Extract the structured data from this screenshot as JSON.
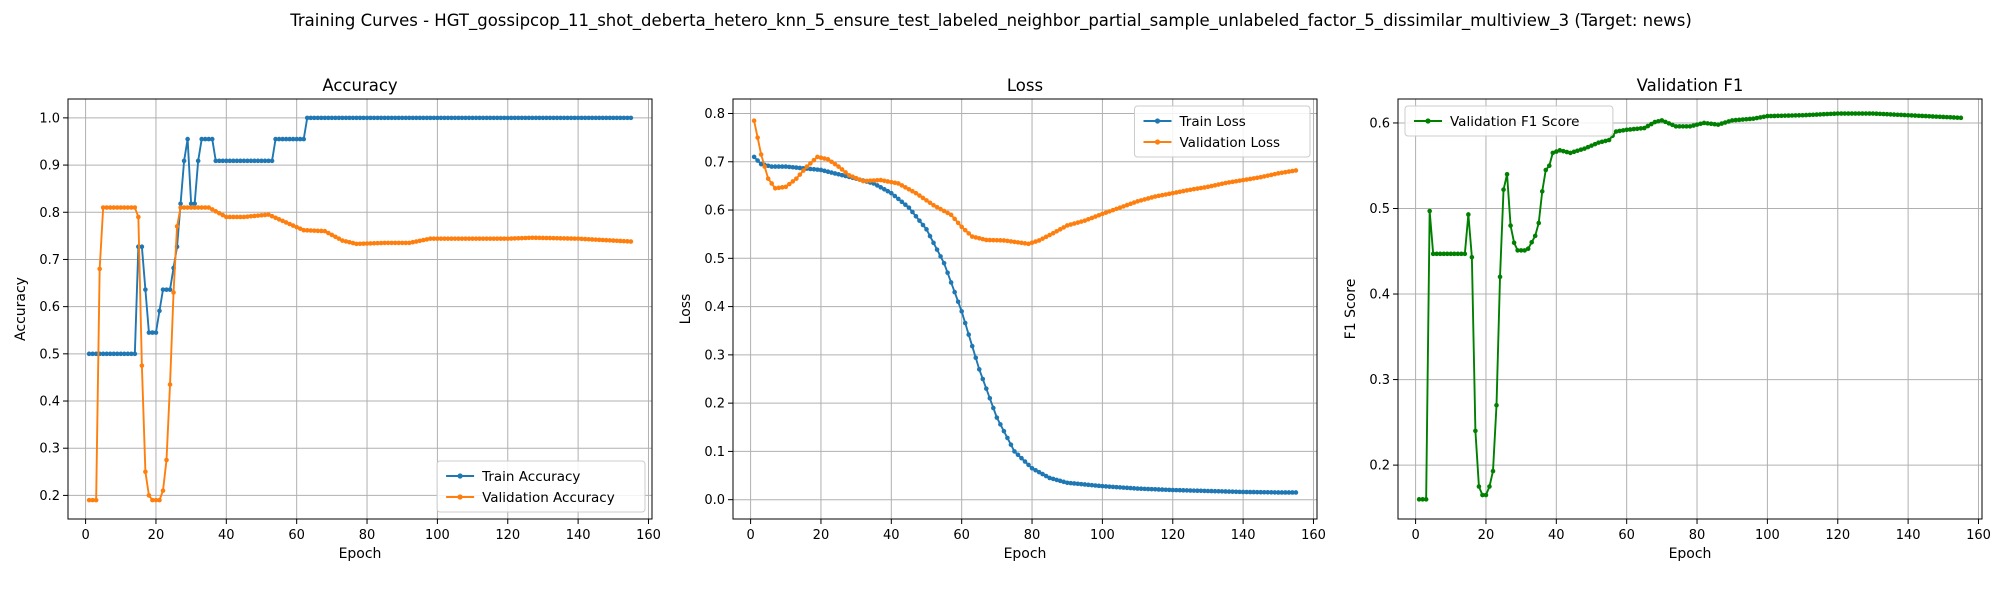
{
  "suptitle": "Training Curves - HGT_gossipcop_11_shot_deberta_hetero_knn_5_ensure_test_labeled_neighbor_partial_sample_unlabeled_factor_5_dissimilar_multiview_3 (Target: news)",
  "colors": {
    "blue": "#1f77b4",
    "orange": "#ff7f0e",
    "green": "#008000",
    "grid": "#b0b0b0"
  },
  "chart_data": [
    {
      "type": "line",
      "title": "Accuracy",
      "xlabel": "Epoch",
      "ylabel": "Accuracy",
      "xlim": [
        -5,
        161
      ],
      "ylim": [
        0.15,
        1.04
      ],
      "xticks": [
        0,
        20,
        40,
        60,
        80,
        100,
        120,
        140,
        160
      ],
      "yticks": [
        0.2,
        0.3,
        0.4,
        0.5,
        0.6,
        0.7,
        0.8,
        0.9,
        1.0
      ],
      "legend_loc": "lower-right",
      "grid": true,
      "series": [
        {
          "name": "Train Accuracy",
          "color": "blue",
          "segments": [
            [
              1,
              0.5
            ],
            [
              14,
              0.5
            ],
            [
              15,
              0.727
            ],
            [
              16,
              0.727
            ],
            [
              17,
              0.636
            ],
            [
              18,
              0.545
            ],
            [
              20,
              0.545
            ],
            [
              21,
              0.591
            ],
            [
              22,
              0.636
            ],
            [
              24,
              0.636
            ],
            [
              25,
              0.682
            ],
            [
              26,
              0.727
            ],
            [
              27,
              0.818
            ],
            [
              28,
              0.909
            ],
            [
              29,
              0.955
            ],
            [
              30,
              0.818
            ],
            [
              31,
              0.818
            ],
            [
              32,
              0.909
            ],
            [
              33,
              0.955
            ],
            [
              36,
              0.955
            ],
            [
              37,
              0.909
            ],
            [
              53,
              0.909
            ],
            [
              54,
              0.955
            ],
            [
              62,
              0.955
            ],
            [
              63,
              1.0
            ],
            [
              155,
              1.0
            ]
          ]
        },
        {
          "name": "Validation Accuracy",
          "color": "orange",
          "segments": [
            [
              1,
              0.19
            ],
            [
              3,
              0.19
            ],
            [
              4,
              0.68
            ],
            [
              5,
              0.81
            ],
            [
              14,
              0.81
            ],
            [
              15,
              0.79
            ],
            [
              16,
              0.475
            ],
            [
              17,
              0.25
            ],
            [
              18,
              0.2
            ],
            [
              19,
              0.19
            ],
            [
              21,
              0.19
            ],
            [
              22,
              0.21
            ],
            [
              23,
              0.275
            ],
            [
              24,
              0.435
            ],
            [
              25,
              0.63
            ],
            [
              26,
              0.77
            ],
            [
              27,
              0.81
            ],
            [
              35,
              0.81
            ],
            [
              40,
              0.79
            ],
            [
              45,
              0.79
            ],
            [
              52,
              0.795
            ],
            [
              58,
              0.775
            ],
            [
              62,
              0.762
            ],
            [
              68,
              0.76
            ],
            [
              73,
              0.74
            ],
            [
              77,
              0.733
            ],
            [
              85,
              0.735
            ],
            [
              92,
              0.735
            ],
            [
              98,
              0.744
            ],
            [
              120,
              0.744
            ],
            [
              127,
              0.746
            ],
            [
              140,
              0.744
            ],
            [
              150,
              0.74
            ],
            [
              155,
              0.738
            ]
          ]
        }
      ]
    },
    {
      "type": "line",
      "title": "Loss",
      "xlabel": "Epoch",
      "ylabel": "Loss",
      "xlim": [
        -5,
        161
      ],
      "ylim": [
        -0.04,
        0.83
      ],
      "xticks": [
        0,
        20,
        40,
        60,
        80,
        100,
        120,
        140,
        160
      ],
      "yticks": [
        0.0,
        0.1,
        0.2,
        0.3,
        0.4,
        0.5,
        0.6,
        0.7,
        0.8
      ],
      "legend_loc": "upper-right",
      "grid": true,
      "series": [
        {
          "name": "Train Loss",
          "color": "blue",
          "segments": [
            [
              1,
              0.71
            ],
            [
              3,
              0.695
            ],
            [
              6,
              0.69
            ],
            [
              10,
              0.69
            ],
            [
              20,
              0.683
            ],
            [
              30,
              0.665
            ],
            [
              35,
              0.655
            ],
            [
              40,
              0.635
            ],
            [
              45,
              0.605
            ],
            [
              50,
              0.56
            ],
            [
              55,
              0.49
            ],
            [
              60,
              0.39
            ],
            [
              65,
              0.27
            ],
            [
              70,
              0.17
            ],
            [
              75,
              0.1
            ],
            [
              80,
              0.065
            ],
            [
              85,
              0.045
            ],
            [
              90,
              0.035
            ],
            [
              100,
              0.028
            ],
            [
              110,
              0.023
            ],
            [
              120,
              0.02
            ],
            [
              130,
              0.018
            ],
            [
              140,
              0.016
            ],
            [
              150,
              0.015
            ],
            [
              155,
              0.015
            ]
          ]
        },
        {
          "name": "Validation Loss",
          "color": "orange",
          "segments": [
            [
              1,
              0.785
            ],
            [
              2,
              0.75
            ],
            [
              3,
              0.715
            ],
            [
              5,
              0.665
            ],
            [
              7,
              0.645
            ],
            [
              10,
              0.648
            ],
            [
              13,
              0.665
            ],
            [
              16,
              0.69
            ],
            [
              19,
              0.71
            ],
            [
              22,
              0.705
            ],
            [
              25,
              0.69
            ],
            [
              28,
              0.672
            ],
            [
              32,
              0.66
            ],
            [
              37,
              0.662
            ],
            [
              42,
              0.655
            ],
            [
              47,
              0.635
            ],
            [
              52,
              0.61
            ],
            [
              57,
              0.59
            ],
            [
              60,
              0.565
            ],
            [
              63,
              0.545
            ],
            [
              67,
              0.538
            ],
            [
              72,
              0.537
            ],
            [
              76,
              0.533
            ],
            [
              79,
              0.53
            ],
            [
              82,
              0.537
            ],
            [
              86,
              0.552
            ],
            [
              90,
              0.568
            ],
            [
              95,
              0.578
            ],
            [
              100,
              0.592
            ],
            [
              105,
              0.605
            ],
            [
              110,
              0.618
            ],
            [
              115,
              0.628
            ],
            [
              120,
              0.635
            ],
            [
              125,
              0.642
            ],
            [
              130,
              0.648
            ],
            [
              135,
              0.656
            ],
            [
              140,
              0.662
            ],
            [
              145,
              0.668
            ],
            [
              150,
              0.676
            ],
            [
              155,
              0.682
            ]
          ]
        }
      ]
    },
    {
      "type": "line",
      "title": "Validation F1",
      "xlabel": "Epoch",
      "ylabel": "F1 Score",
      "xlim": [
        -5,
        161
      ],
      "ylim": [
        0.137,
        0.628
      ],
      "xticks": [
        0,
        20,
        40,
        60,
        80,
        100,
        120,
        140,
        160
      ],
      "yticks": [
        0.2,
        0.3,
        0.4,
        0.5,
        0.6
      ],
      "legend_loc": "upper-left",
      "grid": true,
      "series": [
        {
          "name": "Validation F1 Score",
          "color": "green",
          "segments": [
            [
              1,
              0.16
            ],
            [
              3,
              0.16
            ],
            [
              4,
              0.497
            ],
            [
              5,
              0.447
            ],
            [
              14,
              0.447
            ],
            [
              15,
              0.493
            ],
            [
              16,
              0.443
            ],
            [
              17,
              0.24
            ],
            [
              18,
              0.175
            ],
            [
              19,
              0.165
            ],
            [
              20,
              0.165
            ],
            [
              21,
              0.175
            ],
            [
              22,
              0.193
            ],
            [
              23,
              0.27
            ],
            [
              24,
              0.42
            ],
            [
              25,
              0.522
            ],
            [
              26,
              0.54
            ],
            [
              27,
              0.48
            ],
            [
              28,
              0.46
            ],
            [
              29,
              0.451
            ],
            [
              31,
              0.451
            ],
            [
              32,
              0.453
            ],
            [
              34,
              0.468
            ],
            [
              35,
              0.483
            ],
            [
              36,
              0.52
            ],
            [
              37,
              0.545
            ],
            [
              38,
              0.55
            ],
            [
              39,
              0.565
            ],
            [
              41,
              0.568
            ],
            [
              44,
              0.565
            ],
            [
              48,
              0.57
            ],
            [
              52,
              0.577
            ],
            [
              55,
              0.58
            ],
            [
              57,
              0.59
            ],
            [
              60,
              0.592
            ],
            [
              65,
              0.594
            ],
            [
              68,
              0.601
            ],
            [
              70,
              0.603
            ],
            [
              74,
              0.596
            ],
            [
              78,
              0.596
            ],
            [
              82,
              0.6
            ],
            [
              86,
              0.598
            ],
            [
              90,
              0.603
            ],
            [
              96,
              0.605
            ],
            [
              100,
              0.608
            ],
            [
              110,
              0.609
            ],
            [
              120,
              0.611
            ],
            [
              130,
              0.611
            ],
            [
              140,
              0.609
            ],
            [
              150,
              0.607
            ],
            [
              155,
              0.606
            ]
          ]
        }
      ]
    }
  ]
}
